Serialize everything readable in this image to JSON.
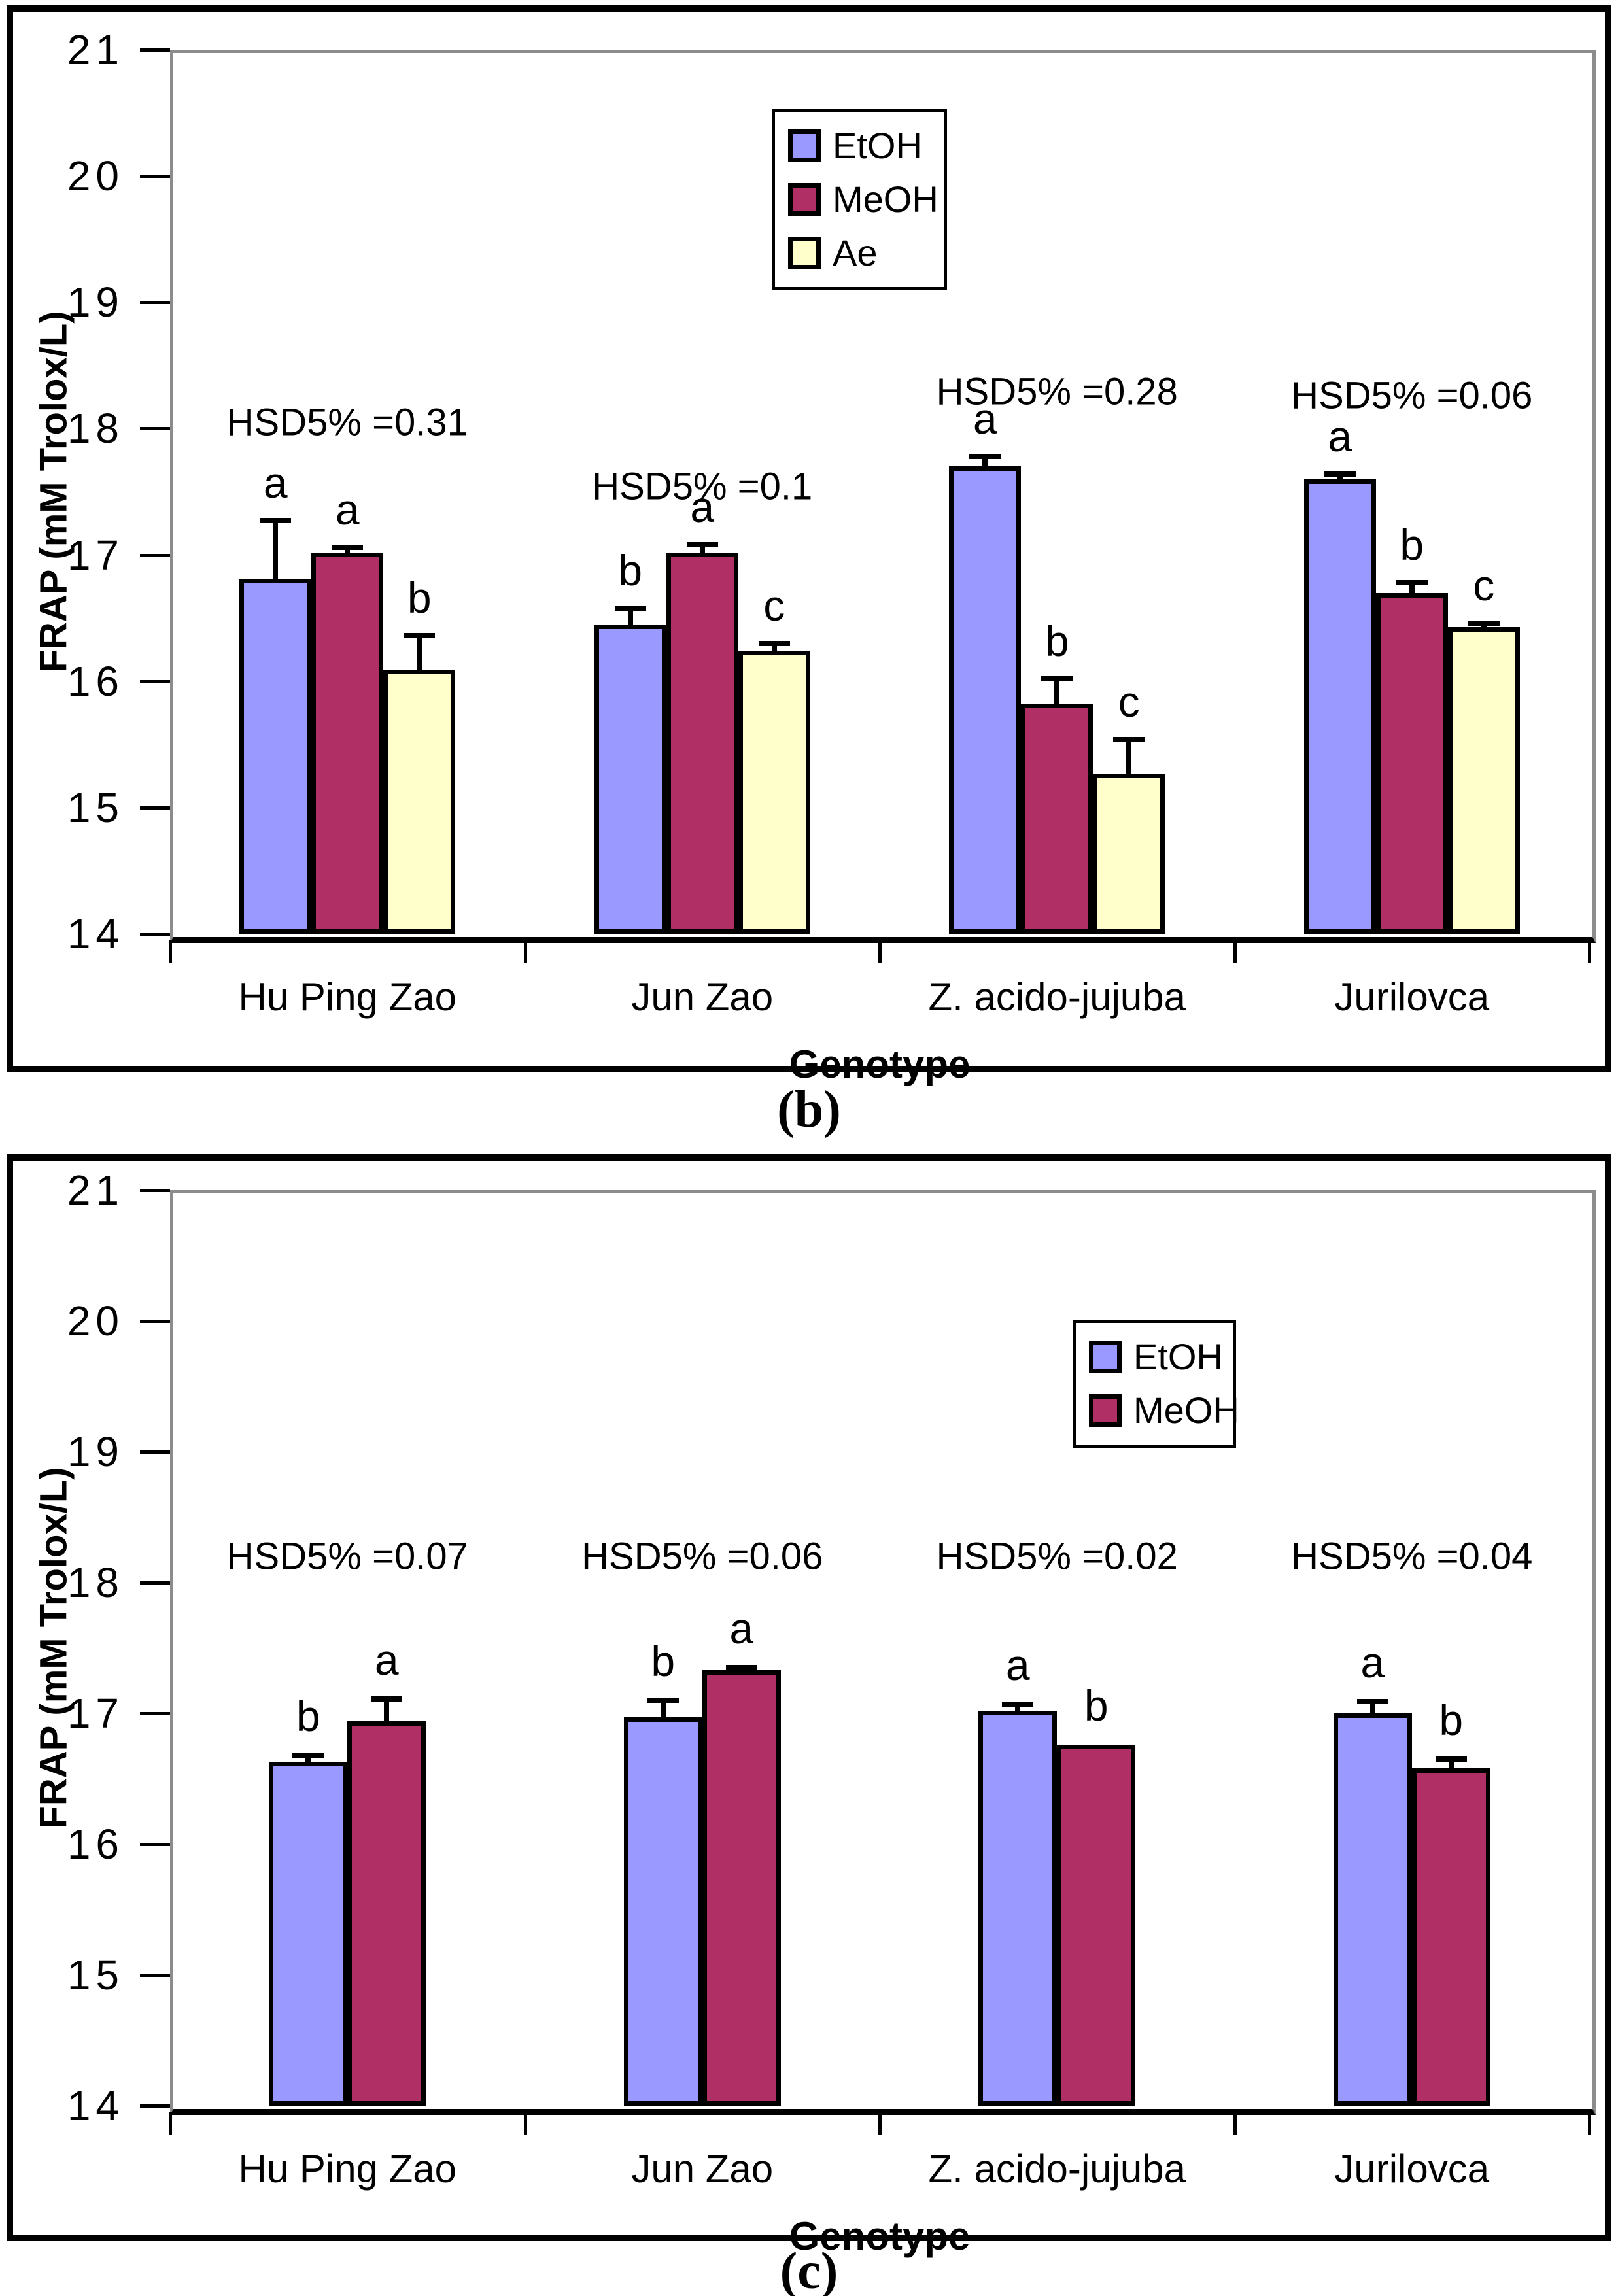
{
  "figure": {
    "captions": [
      "(b)",
      "(c)"
    ]
  },
  "colors": {
    "EtOH": "#9999FF",
    "MeOH": "#B03066",
    "Ae": "#FFFFCC",
    "bar_border": "#000000",
    "plot_border": "#8C8C8C"
  },
  "chart_data": [
    {
      "type": "bar",
      "caption": "(b)",
      "ylabel": "FRAP (mM Trolox/L)",
      "xlabel": "Genotype",
      "ylim": [
        14,
        21
      ],
      "ytick_step": 1,
      "ytick_labels": [
        "14",
        "15",
        "16",
        "17",
        "18",
        "19",
        "20",
        "21"
      ],
      "grid": false,
      "legend_entries": [
        "EtOH",
        "MeOH",
        "Ae"
      ],
      "categories": [
        "Hu Ping Zao",
        "Jun Zao",
        "Z. acido-jujuba",
        "Jurilovca"
      ],
      "series": [
        {
          "name": "EtOH",
          "color_key": "EtOH",
          "values": [
            16.81,
            16.45,
            17.7,
            17.6
          ],
          "errors": [
            0.46,
            0.13,
            0.08,
            0.04
          ],
          "letters": [
            "a",
            "b",
            "a",
            "a"
          ]
        },
        {
          "name": "MeOH",
          "color_key": "MeOH",
          "values": [
            17.02,
            17.02,
            15.82,
            16.7
          ],
          "errors": [
            0.04,
            0.06,
            0.2,
            0.08
          ],
          "letters": [
            "a",
            "a",
            "b",
            "b"
          ]
        },
        {
          "name": "Ae",
          "color_key": "Ae",
          "values": [
            16.09,
            16.24,
            15.27,
            16.43
          ],
          "errors": [
            0.27,
            0.06,
            0.27,
            0.03
          ],
          "letters": [
            "b",
            "c",
            "c",
            "c"
          ]
        }
      ],
      "hsd_labels": [
        "HSD5% =0.31",
        "HSD5% =0.1",
        "HSD5% =0.28",
        "HSD5% =0.06"
      ],
      "hsd_label_y": [
        18.05,
        17.54,
        18.29,
        18.26
      ]
    },
    {
      "type": "bar",
      "caption": "(c)",
      "ylabel": "FRAP (mM Trolox/L)",
      "xlabel": "Genotype",
      "ylim": [
        14,
        21
      ],
      "ytick_step": 1,
      "ytick_labels": [
        "14",
        "15",
        "16",
        "17",
        "18",
        "19",
        "20",
        "21"
      ],
      "grid": false,
      "legend_entries": [
        "EtOH",
        "MeOH"
      ],
      "categories": [
        "Hu Ping Zao",
        "Jun Zao",
        "Z. acido-jujuba",
        "Jurilovca"
      ],
      "series": [
        {
          "name": "EtOH",
          "color_key": "EtOH",
          "values": [
            16.63,
            16.97,
            17.02,
            17.0
          ],
          "errors": [
            0.05,
            0.13,
            0.05,
            0.09
          ],
          "letters": [
            "b",
            "b",
            "a",
            "a"
          ]
        },
        {
          "name": "MeOH",
          "color_key": "MeOH",
          "values": [
            16.94,
            17.33,
            16.76,
            16.58
          ],
          "errors": [
            0.17,
            0.02,
            0.0,
            0.07
          ],
          "letters": [
            "a",
            "a",
            "b",
            "b"
          ]
        }
      ],
      "hsd_labels": [
        "HSD5% =0.07",
        "HSD5% =0.06",
        "HSD5% =0.02",
        "HSD5% =0.04"
      ],
      "hsd_label_y": [
        18.2,
        18.2,
        18.2,
        18.2
      ]
    }
  ]
}
